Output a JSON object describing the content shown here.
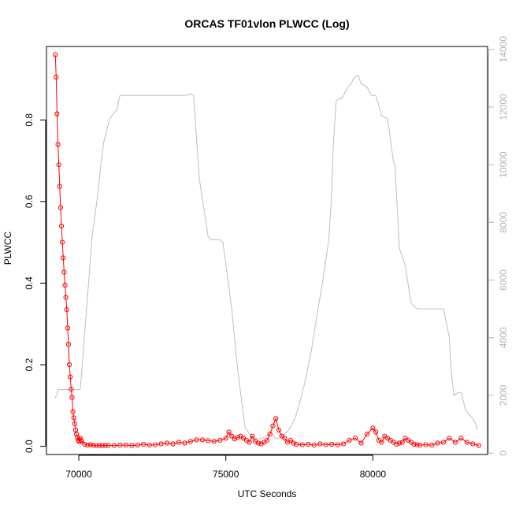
{
  "chart_data": {
    "type": "line",
    "title": "ORCAS TF01vlon PLWCC (Log)",
    "xlabel": "UTC Seconds",
    "ylabel": "PLWCC",
    "xlim": [
      68900,
      83900
    ],
    "ylim": [
      -0.02,
      0.98
    ],
    "y2lim": [
      -50,
      14100
    ],
    "x_ticks": [
      70000,
      75000,
      80000
    ],
    "x_tick_labels": [
      "70000",
      "75000",
      "80000"
    ],
    "y_ticks": [
      0.0,
      0.2,
      0.4,
      0.6,
      0.8
    ],
    "y_tick_labels": [
      "0.0",
      "0.2",
      "0.4",
      "0.6",
      "0.8"
    ],
    "y2_ticks": [
      0,
      2000,
      4000,
      6000,
      8000,
      10000,
      12000,
      14000
    ],
    "y2_tick_labels": [
      "0",
      "2000",
      "4000",
      "6000",
      "8000",
      "10000",
      "12000",
      "14000"
    ],
    "grid": false,
    "colors": {
      "plwcc": "#ff0000",
      "altitude": "#bebebe",
      "axis": "#000000",
      "axis_right": "#b3b3b3"
    },
    "series": [
      {
        "axis": "left",
        "style": "points+line",
        "x": [
          69200,
          69230,
          69260,
          69290,
          69320,
          69350,
          69380,
          69410,
          69440,
          69470,
          69500,
          69530,
          69560,
          69590,
          69620,
          69650,
          69680,
          69710,
          69740,
          69770,
          69800,
          69830,
          69860,
          69890,
          69920,
          69950,
          69980,
          70010,
          70040,
          70070,
          70100,
          70200,
          70300,
          70400,
          70500,
          70600,
          70700,
          70800,
          70900,
          71000,
          71200,
          71400,
          71600,
          71800,
          72000,
          72200,
          72400,
          72600,
          72800,
          73000,
          73200,
          73400,
          73600,
          73800,
          74000,
          74200,
          74400,
          74600,
          74800,
          75000,
          75100,
          75200,
          75300,
          75400,
          75500,
          75600,
          75700,
          75800,
          75900,
          76000,
          76100,
          76200,
          76300,
          76400,
          76500,
          76600,
          76700,
          76800,
          76900,
          77000,
          77100,
          77200,
          77300,
          77400,
          77600,
          77800,
          78000,
          78200,
          78400,
          78600,
          78800,
          79000,
          79200,
          79400,
          79600,
          79800,
          80000,
          80100,
          80200,
          80300,
          80400,
          80500,
          80600,
          80700,
          80800,
          80900,
          81000,
          81100,
          81200,
          81300,
          81400,
          81500,
          81600,
          81800,
          82000,
          82200,
          82400,
          82600,
          82800,
          83000,
          83200,
          83400,
          83600
        ],
        "y": [
          0.96,
          0.905,
          0.815,
          0.74,
          0.69,
          0.637,
          0.585,
          0.54,
          0.5,
          0.462,
          0.427,
          0.395,
          0.365,
          0.335,
          0.29,
          0.25,
          0.2,
          0.17,
          0.14,
          0.12,
          0.085,
          0.07,
          0.055,
          0.04,
          0.03,
          0.022,
          0.015,
          0.012,
          0.02,
          0.015,
          0.012,
          0.005,
          0.003,
          0.004,
          0.002,
          0.002,
          0.002,
          0.002,
          0.002,
          0.002,
          0.002,
          0.003,
          0.003,
          0.002,
          0.003,
          0.005,
          0.003,
          0.004,
          0.006,
          0.008,
          0.006,
          0.01,
          0.008,
          0.012,
          0.016,
          0.016,
          0.014,
          0.012,
          0.015,
          0.02,
          0.035,
          0.025,
          0.018,
          0.022,
          0.025,
          0.02,
          0.015,
          0.01,
          0.025,
          0.012,
          0.008,
          0.006,
          0.01,
          0.015,
          0.03,
          0.05,
          0.068,
          0.04,
          0.025,
          0.02,
          0.01,
          0.015,
          0.008,
          0.005,
          0.004,
          0.005,
          0.003,
          0.006,
          0.004,
          0.005,
          0.004,
          0.006,
          0.015,
          0.02,
          0.008,
          0.03,
          0.045,
          0.035,
          0.015,
          0.01,
          0.025,
          0.02,
          0.015,
          0.01,
          0.005,
          0.008,
          0.01,
          0.02,
          0.015,
          0.01,
          0.005,
          0.004,
          0.003,
          0.004,
          0.003,
          0.008,
          0.01,
          0.02,
          0.01,
          0.02,
          0.01,
          0.006,
          0.002
        ]
      },
      {
        "axis": "right",
        "style": "line",
        "x": [
          69200,
          69300,
          69700,
          69950,
          70050,
          70150,
          70300,
          70450,
          70650,
          70750,
          70850,
          70950,
          71050,
          71200,
          71300,
          71350,
          71400,
          71700,
          72100,
          72600,
          73000,
          73300,
          73600,
          73800,
          73900,
          74100,
          74400,
          74500,
          74800,
          74900,
          75200,
          75400,
          75650,
          75850,
          75950,
          76200,
          76400,
          76550,
          76700,
          76800,
          76950,
          77050,
          77200,
          77350,
          77500,
          77700,
          77900,
          78100,
          78300,
          78500,
          78600,
          78650,
          78750,
          78850,
          78950,
          79150,
          79250,
          79350,
          79500,
          79600,
          79800,
          79950,
          80100,
          80300,
          80500,
          80700,
          80750,
          80900,
          81100,
          81300,
          81500,
          81700,
          81900,
          82000,
          82100,
          82200,
          82400,
          82600,
          82650,
          82750,
          82900,
          83000,
          83150,
          83300,
          83400,
          83500,
          83550
        ],
        "y": [
          1900,
          2200,
          2200,
          2200,
          2200,
          3500,
          5500,
          7500,
          9000,
          10000,
          10800,
          11200,
          11600,
          11800,
          11900,
          12200,
          12400,
          12400,
          12400,
          12400,
          12400,
          12400,
          12400,
          12450,
          12400,
          9500,
          7500,
          7400,
          7400,
          7300,
          5000,
          2900,
          900,
          600,
          500,
          500,
          600,
          700,
          500,
          500,
          600,
          700,
          900,
          1200,
          1700,
          2500,
          3500,
          4800,
          6000,
          7400,
          9000,
          10600,
          12200,
          12300,
          12300,
          12700,
          12800,
          13000,
          13100,
          12800,
          12700,
          12400,
          12400,
          11700,
          11600,
          10100,
          10000,
          7100,
          6500,
          5200,
          5000,
          5000,
          5000,
          5000,
          5000,
          5000,
          5000,
          4000,
          3000,
          2000,
          2100,
          2100,
          1500,
          1300,
          1200,
          1000,
          800
        ]
      }
    ]
  }
}
